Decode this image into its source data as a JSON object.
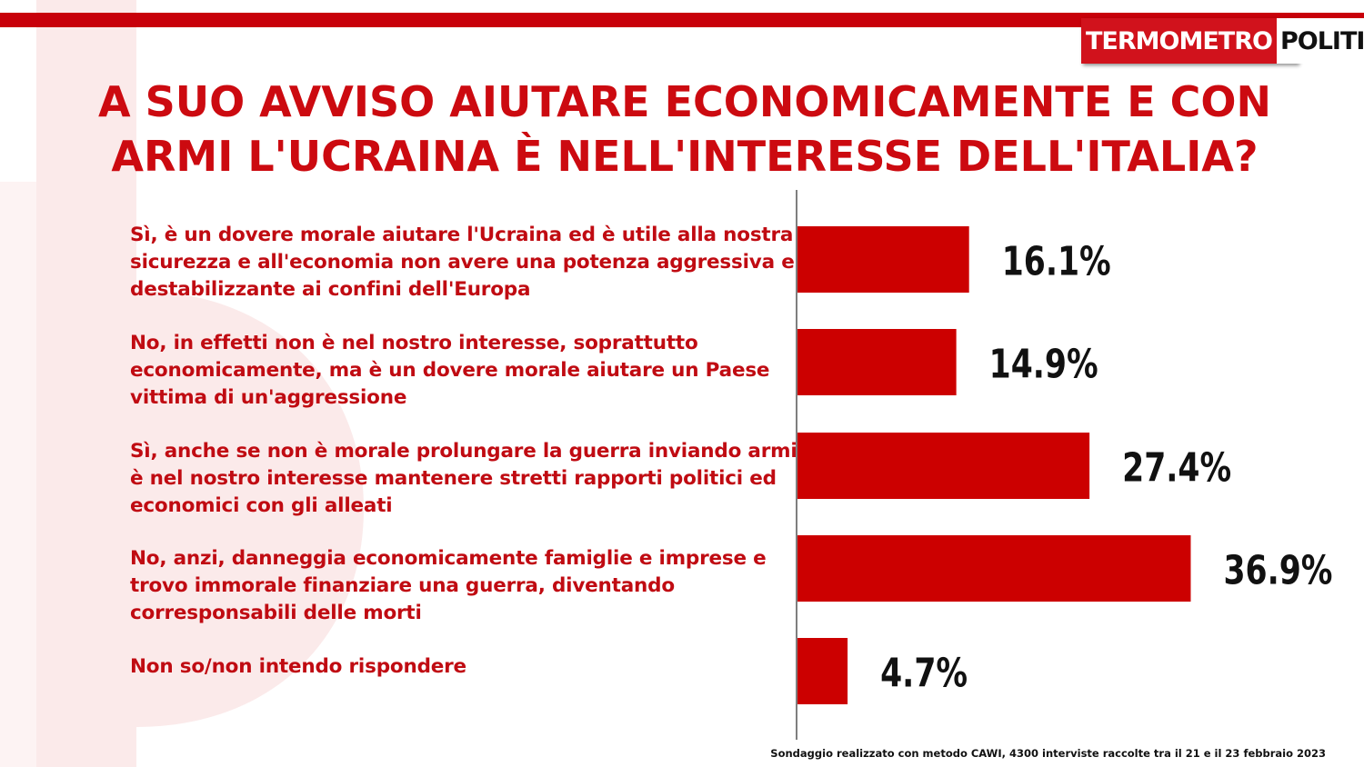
{
  "brand": {
    "left": "TERMOMETRO",
    "right": "POLITICO",
    "accent": "#c8000a"
  },
  "title": "A SUO AVVISO AIUTARE ECONOMICAMENTE E CON ARMI L'UCRAINA È NELL'INTERESSE DELL'ITALIA?",
  "footer": "Sondaggio realizzato con metodo CAWI, 4300 interviste raccolte tra il 21 e il 23 febbraio 2023",
  "chart_data": {
    "type": "bar",
    "orientation": "horizontal",
    "categories": [
      "Sì, è un dovere morale aiutare l'Ucraina ed è utile alla nostra sicurezza e all'economia non avere una potenza aggressiva e destabilizzante ai confini dell'Europa",
      "No, in effetti non è nel nostro interesse, soprattutto economicamente, ma è un dovere morale aiutare un Paese vittima di un'aggressione",
      "Sì, anche se non è morale prolungare la guerra inviando armi è nel nostro interesse mantenere stretti rapporti politici ed economici con gli alleati",
      "No, anzi, danneggia economicamente famiglie e imprese e trovo immorale finanziare una guerra, diventando corresponsabili delle morti",
      "Non so/non intendo rispondere"
    ],
    "values": [
      16.1,
      14.9,
      27.4,
      36.9,
      4.7
    ],
    "value_labels": [
      "16.1%",
      "14.9%",
      "27.4%",
      "36.9%",
      "4.7%"
    ],
    "bar_color": "#cc0000",
    "xlim": [
      0,
      40
    ],
    "grid": false,
    "legend": "none"
  }
}
